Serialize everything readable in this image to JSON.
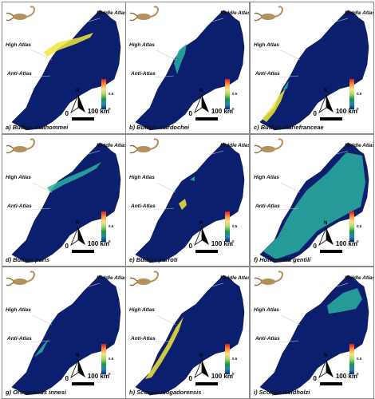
{
  "labels": {
    "middle_atlas": "Middle Atlas",
    "high_atlas": "High Atlas",
    "anti_atlas": "Anti-Atlas",
    "north": "N",
    "scale_zero": "0",
    "scale_km": "100 km",
    "legend_max": "1",
    "legend_mid": "0.5",
    "legend_min": "0"
  },
  "colors": {
    "low": "#0b1f6e",
    "mid": "#2bb0a0",
    "high": "#f2e63a",
    "hot": "#d7191c"
  },
  "panels": [
    {
      "caption": "a) Buthus malhommei",
      "species_icon": "scorpion-yellow-icon",
      "pattern": "high-atlas-strip"
    },
    {
      "caption": "b) Buthus mardochei",
      "species_icon": "scorpion-tan-icon",
      "pattern": "west-coast"
    },
    {
      "caption": "c) Buthus mariefranceae",
      "species_icon": "scorpion-orange-icon",
      "pattern": "southwest"
    },
    {
      "caption": "d) Buthus paris",
      "species_icon": "scorpion-pale-icon",
      "pattern": "atlas-band"
    },
    {
      "caption": "e) Buthus parroti",
      "species_icon": "scorpion-brown-icon",
      "pattern": "small-spot"
    },
    {
      "caption": "f) Hottentotta gentili",
      "species_icon": "scorpion-black-icon",
      "pattern": "widespread"
    },
    {
      "caption": "g) Orthochirus innesi",
      "species_icon": "scorpion-grey-icon",
      "pattern": "sparse"
    },
    {
      "caption": "h) Scorpio mogadorensis",
      "species_icon": "scorpion-darkbrown-icon",
      "pattern": "coastal"
    },
    {
      "caption": "i) Scorpio weidholzi",
      "species_icon": "scorpion-dark-icon",
      "pattern": "northeast-band"
    }
  ]
}
